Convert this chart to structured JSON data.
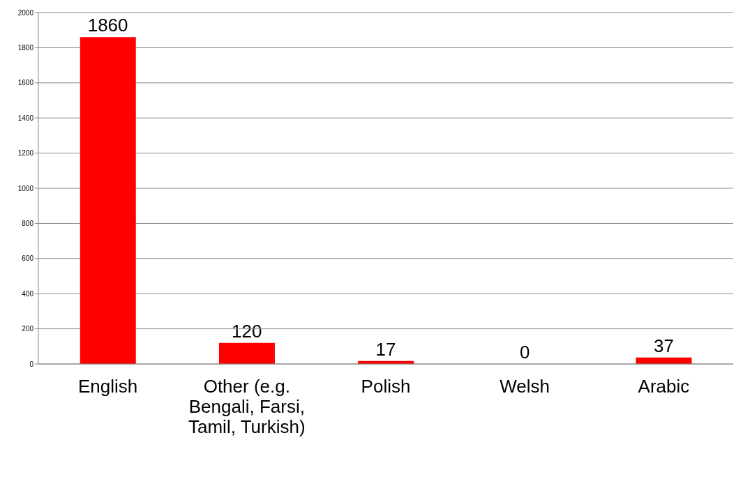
{
  "chart_data": {
    "type": "bar",
    "categories": [
      "English",
      "Other (e.g. Bengali, Farsi, Tamil, Turkish)",
      "Polish",
      "Welsh",
      "Arabic"
    ],
    "values": [
      1860,
      120,
      17,
      0,
      37
    ],
    "color": "#ff0000",
    "data_labels": true,
    "ylim": [
      0,
      2000
    ],
    "yticks": [
      0,
      200,
      400,
      600,
      800,
      1000,
      1200,
      1400,
      1600,
      1800,
      2000
    ],
    "grid": "y"
  }
}
